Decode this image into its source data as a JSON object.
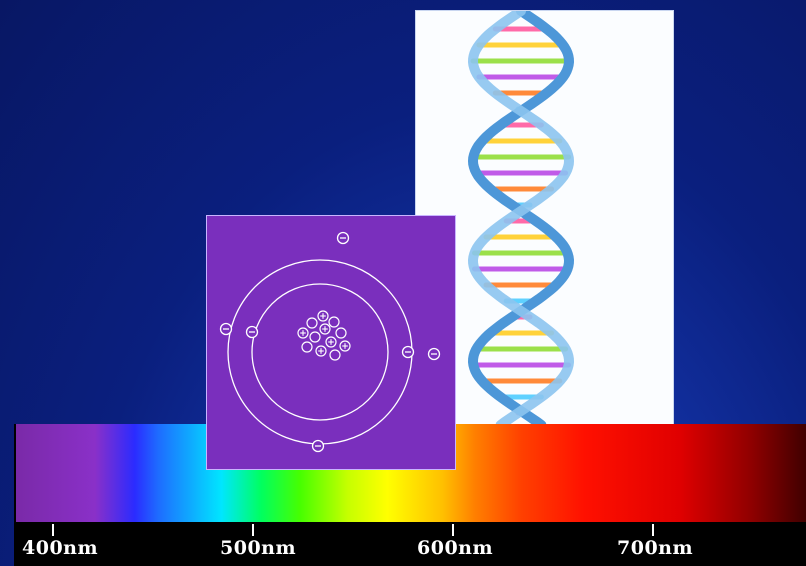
{
  "colors": {
    "background": "#0a1f7e",
    "atom_panel": "#7a2fbd",
    "dna_strand": "#6aaee6"
  },
  "images": {
    "dna_icon": "dna-double-helix",
    "atom_icon": "atom-bohr-model"
  },
  "spectrum": {
    "ticks": [
      {
        "label": "400nm"
      },
      {
        "label": "500nm"
      },
      {
        "label": "600nm"
      },
      {
        "label": "700nm"
      }
    ]
  }
}
